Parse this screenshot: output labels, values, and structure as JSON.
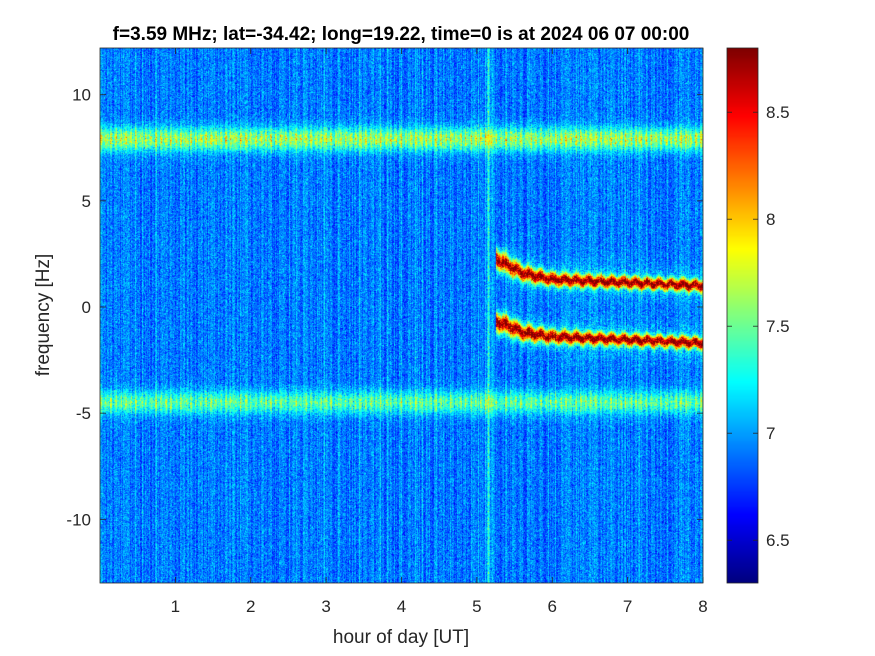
{
  "chart_data": {
    "type": "heatmap",
    "title": "f=3.59 MHz;  lat=-34.42; long=19.22, time=0 is at 2024 06 07 00:00",
    "xlabel": "hour of day [UT]",
    "ylabel": "frequency [Hz]",
    "xlim": [
      0,
      8
    ],
    "ylim": [
      -13,
      12.2
    ],
    "xticks": [
      1,
      2,
      3,
      4,
      5,
      6,
      7,
      8
    ],
    "xtick_labels": [
      "1",
      "2",
      "3",
      "4",
      "5",
      "6",
      "7",
      "8"
    ],
    "yticks": [
      10,
      5,
      0,
      -5,
      -10
    ],
    "ytick_labels": [
      "10",
      "5",
      "0",
      "-5",
      "-10"
    ],
    "colorbar": {
      "colormap": "jet",
      "clim": [
        6.3,
        8.8
      ],
      "ticks": [
        8.5,
        8,
        7.5,
        7,
        6.5
      ],
      "tick_labels": [
        "8.5",
        "8",
        "7.5",
        "7",
        "6.5"
      ]
    },
    "background_level": 6.9,
    "grid": false,
    "features": [
      {
        "kind": "horizontal_band",
        "freq": 7.9,
        "x_range": [
          0,
          8
        ],
        "level": 7.7
      },
      {
        "kind": "horizontal_band",
        "freq": -4.5,
        "x_range": [
          0,
          8
        ],
        "level": 7.5
      },
      {
        "kind": "vertical_stripe",
        "x": 5.15,
        "level": 7.4
      },
      {
        "kind": "doppler_trace",
        "points": [
          [
            5.25,
            2.3
          ],
          [
            5.4,
            2.0
          ],
          [
            5.6,
            1.6
          ],
          [
            6.0,
            1.3
          ],
          [
            7.0,
            1.15
          ],
          [
            8.0,
            1.0
          ]
        ],
        "level": 8.7
      },
      {
        "kind": "doppler_trace",
        "points": [
          [
            5.25,
            -0.7
          ],
          [
            5.4,
            -0.85
          ],
          [
            5.6,
            -1.2
          ],
          [
            6.0,
            -1.4
          ],
          [
            7.0,
            -1.55
          ],
          [
            8.0,
            -1.7
          ]
        ],
        "level": 8.7
      }
    ]
  }
}
